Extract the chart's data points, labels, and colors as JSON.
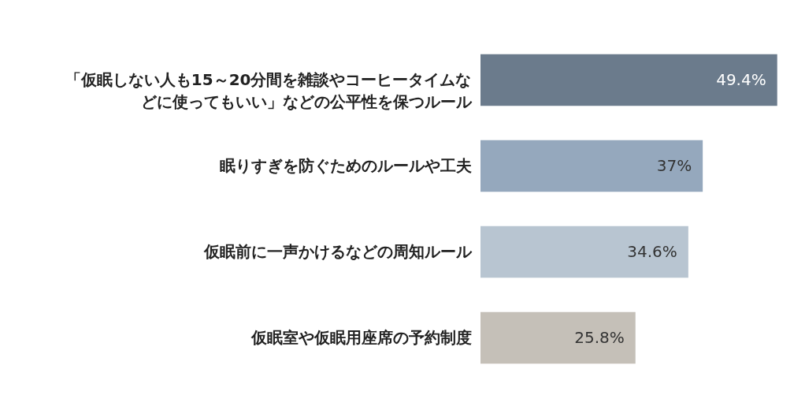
{
  "chart_data": {
    "type": "bar",
    "orientation": "horizontal",
    "data_labels": true,
    "value_labels": [
      "49.4%",
      "37%",
      "34.6%",
      "25.8%"
    ],
    "categories": [
      "「仮眠しない人も15～20分間を雑談やコーヒータイムなどに使ってもいい」などの公平性を保つルール",
      "眠りすぎを防ぐためのルールや工夫",
      "仮眠前に一声かけるなどの周知ルール",
      "仮眠室や仮眠用座席の予約制度"
    ],
    "values": [
      49.4,
      37,
      34.6,
      25.8
    ],
    "colors": [
      "#6b7b8c",
      "#95a8bd",
      "#b8c5d1",
      "#c5c0b8"
    ]
  }
}
